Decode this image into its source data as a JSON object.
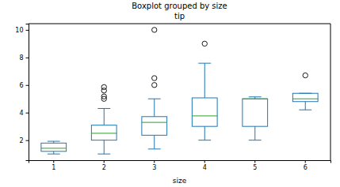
{
  "chart_data": {
    "type": "box",
    "title": "Boxplot grouped by size",
    "subtitle": "tip",
    "x_label": "size",
    "categories": [
      "1",
      "2",
      "3",
      "4",
      "5",
      "6"
    ],
    "boxes": [
      {
        "whisker_low": 1.0,
        "q1": 1.19,
        "median": 1.415,
        "q3": 1.79,
        "whisker_high": 1.92,
        "outliers": []
      },
      {
        "whisker_low": 1.0,
        "q1": 2.0,
        "median": 2.5,
        "q3": 3.09,
        "whisker_high": 4.3,
        "outliers": [
          5.0,
          5.17,
          5.6,
          5.85
        ]
      },
      {
        "whisker_low": 1.36,
        "q1": 2.36,
        "median": 3.29,
        "q3": 3.71,
        "whisker_high": 5.0,
        "outliers": [
          6.0,
          6.5,
          10.0
        ]
      },
      {
        "whisker_low": 2.0,
        "q1": 3.0,
        "median": 3.76,
        "q3": 5.07,
        "whisker_high": 7.58,
        "outliers": [
          9.0
        ]
      },
      {
        "whisker_low": 2.0,
        "q1": 3.0,
        "median": 5.0,
        "q3": 5.0,
        "whisker_high": 5.14,
        "outliers": []
      },
      {
        "whisker_low": 4.2,
        "q1": 4.8,
        "median": 5.0,
        "q3": 5.4,
        "whisker_high": 5.4,
        "outliers": [
          6.7
        ]
      }
    ],
    "color": "#1f77b4",
    "ylim": [
      0.55,
      10.45
    ],
    "yticks": [
      2,
      4,
      6,
      8,
      10
    ],
    "grid": false
  }
}
